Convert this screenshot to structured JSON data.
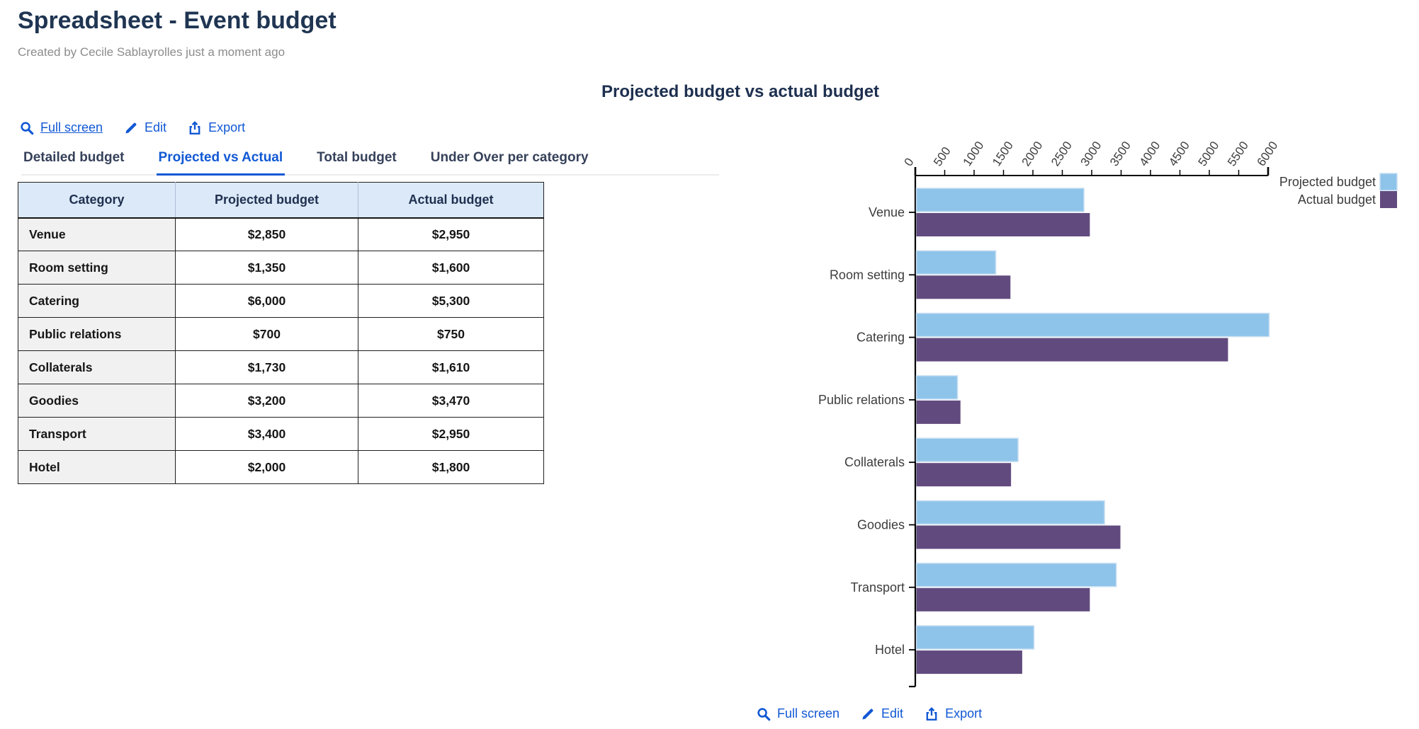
{
  "page": {
    "title": "Spreadsheet - Event budget",
    "subtitle": "Created by Cecile Sablayrolles just a moment ago"
  },
  "colors": {
    "accent_blue": "#1158D4",
    "title_navy": "#1F3552",
    "table_header_bg": "#DCE9F8",
    "projected_bar": "#8FC4EA",
    "actual_bar": "#614B7E"
  },
  "toolbar": {
    "items": [
      {
        "icon": "magnifier-icon",
        "label": "Full screen"
      },
      {
        "icon": "pencil-icon",
        "label": "Edit"
      },
      {
        "icon": "export-icon",
        "label": "Export"
      }
    ]
  },
  "tabs": [
    {
      "label": "Detailed budget",
      "active": false
    },
    {
      "label": "Projected vs Actual",
      "active": true
    },
    {
      "label": "Total budget",
      "active": false
    },
    {
      "label": "Under Over per category",
      "active": false
    }
  ],
  "table": {
    "columns": [
      "Category",
      "Projected budget",
      "Actual budget"
    ],
    "rows": [
      [
        "Venue",
        "$2,850",
        "$2,950"
      ],
      [
        "Room setting",
        "$1,350",
        "$1,600"
      ],
      [
        "Catering",
        "$6,000",
        "$5,300"
      ],
      [
        "Public relations",
        "$700",
        "$750"
      ],
      [
        "Collaterals",
        "$1,730",
        "$1,610"
      ],
      [
        "Goodies",
        "$3,200",
        "$3,470"
      ],
      [
        "Transport",
        "$3,400",
        "$2,950"
      ],
      [
        "Hotel",
        "$2,000",
        "$1,800"
      ]
    ]
  },
  "chart_data": {
    "type": "bar",
    "orientation": "horizontal",
    "title": "Projected budget vs actual budget",
    "categories": [
      "Venue",
      "Room setting",
      "Catering",
      "Public relations",
      "Collaterals",
      "Goodies",
      "Transport",
      "Hotel"
    ],
    "series": [
      {
        "name": "Projected budget",
        "color": "#8FC4EA",
        "stroke": "#C9DFF2",
        "values": [
          2850,
          1350,
          6000,
          700,
          1730,
          3200,
          3400,
          2000
        ]
      },
      {
        "name": "Actual budget",
        "color": "#614B7E",
        "stroke": "",
        "values": [
          2950,
          1600,
          5300,
          750,
          1610,
          3470,
          2950,
          1800
        ]
      }
    ],
    "xlim": [
      0,
      6000
    ],
    "tick_step": 500,
    "ticks": [
      0,
      500,
      1000,
      1500,
      2000,
      2500,
      3000,
      3500,
      4000,
      4500,
      5000,
      5500,
      6000
    ],
    "legend_position": "top-right",
    "grid": false,
    "axis_color": "#000000",
    "label_color": "#3E3E3E"
  }
}
